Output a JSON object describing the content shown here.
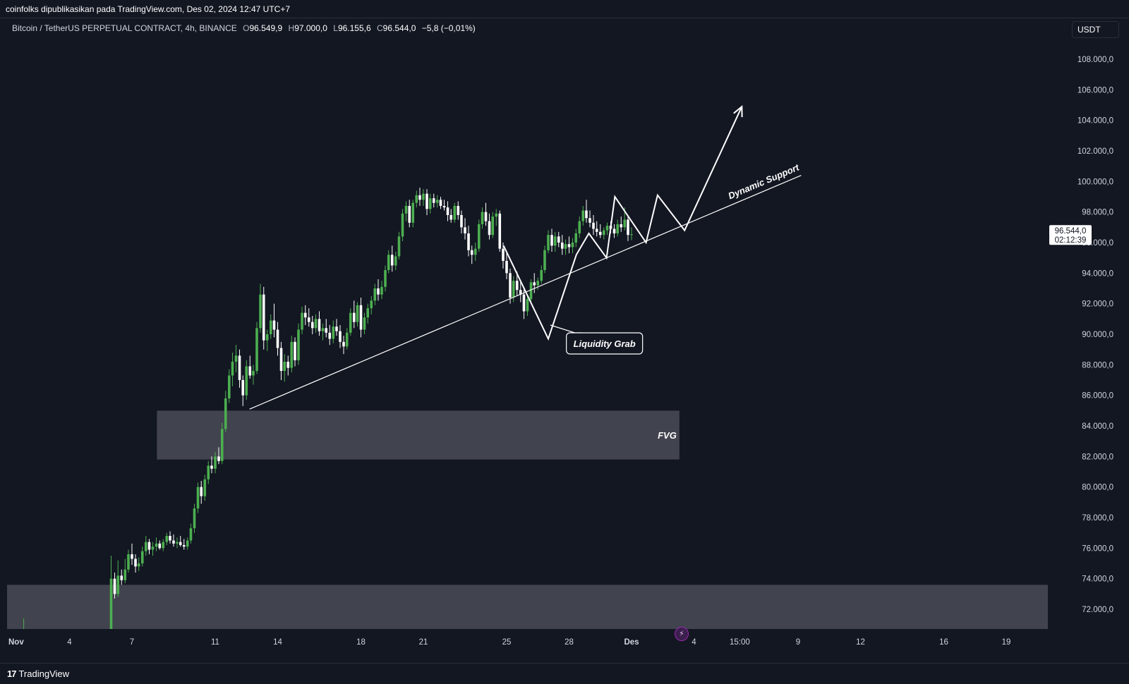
{
  "header": {
    "published_line": "coinfolks dipublikasikan pada TradingView.com, Des 02, 2024 12:47 UTC+7"
  },
  "legend": {
    "symbol": "Bitcoin / TetherUS PERPETUAL CONTRACT, 4h, BINANCE",
    "open_label": "O",
    "open": "96.549,9",
    "high_label": "H",
    "high": "97.000,0",
    "low_label": "L",
    "low": "96.155,6",
    "close_label": "C",
    "close": "96.544,0",
    "change": "−5,8 (−0,01%)"
  },
  "currency": "USDT",
  "footer": {
    "brand": "TradingView",
    "logo": "17"
  },
  "colors": {
    "background": "#131722",
    "up": "#4caf50",
    "down": "#ffffff",
    "zone": "#434651",
    "drawing": "#ffffff"
  },
  "chart_data": {
    "type": "candlestick",
    "timeframe": "4h",
    "ylim": [
      70000,
      110000
    ],
    "y_ticks": [
      72000,
      74000,
      76000,
      78000,
      80000,
      82000,
      84000,
      86000,
      88000,
      90000,
      92000,
      94000,
      96000,
      98000,
      100000,
      102000,
      104000,
      106000,
      108000
    ],
    "y_tick_labels": [
      "72.000,0",
      "74.000,0",
      "76.000,0",
      "78.000,0",
      "80.000,0",
      "82.000,0",
      "84.000,0",
      "86.000,0",
      "88.000,0",
      "90.000,0",
      "92.000,0",
      "94.000,0",
      "96.000,0",
      "98.000,0",
      "100.000,0",
      "102.000,0",
      "104.000,0",
      "106.000,0",
      "108.000,0"
    ],
    "x_range_days": [
      1,
      51
    ],
    "x_ticks": [
      {
        "day": 1,
        "label": "Nov",
        "bold": true
      },
      {
        "day": 4,
        "label": "4"
      },
      {
        "day": 7,
        "label": "7"
      },
      {
        "day": 11,
        "label": "11"
      },
      {
        "day": 14,
        "label": "14"
      },
      {
        "day": 18,
        "label": "18"
      },
      {
        "day": 21,
        "label": "21"
      },
      {
        "day": 25,
        "label": "25"
      },
      {
        "day": 28,
        "label": "28"
      },
      {
        "day": 31,
        "label": "Des",
        "bold": true
      },
      {
        "day": 34,
        "label": "4"
      },
      {
        "day": 36.2,
        "label": "15:00"
      },
      {
        "day": 39,
        "label": "9"
      },
      {
        "day": 42,
        "label": "12"
      },
      {
        "day": 46,
        "label": "16"
      },
      {
        "day": 49,
        "label": "19"
      }
    ],
    "current_price": {
      "value": 96544,
      "label": "96.544,0",
      "countdown": "02:12:39"
    },
    "zones": [
      {
        "label": "FVG",
        "from_day": 8.2,
        "to_day": 33.3,
        "low": 81800,
        "high": 85000
      },
      {
        "label": "",
        "from_day": 1,
        "to_day": 51,
        "low": 70000,
        "high": 73600
      }
    ],
    "trendline": {
      "label": "Dynamic Support",
      "start": {
        "day": 12.65,
        "price": 85100
      },
      "end": {
        "day": 39.15,
        "price": 100400
      }
    },
    "projection_path": [
      {
        "day": 24.85,
        "price": 95800
      },
      {
        "day": 27.0,
        "price": 89700
      },
      {
        "day": 28.35,
        "price": 95200
      },
      {
        "day": 28.95,
        "price": 96600
      },
      {
        "day": 29.8,
        "price": 95000
      },
      {
        "day": 30.2,
        "price": 99000
      },
      {
        "day": 31.7,
        "price": 96000
      },
      {
        "day": 32.25,
        "price": 99100
      },
      {
        "day": 33.55,
        "price": 96800
      },
      {
        "day": 36.3,
        "price": 104900
      }
    ],
    "annotations": [
      {
        "label": "Liquidity Grab",
        "box_day": 29.7,
        "box_price": 89400,
        "pointer_day": 27.1,
        "pointer_price": 90600
      }
    ],
    "candles": [
      [
        1,
        70000,
        70200,
        69800,
        70000
      ],
      [
        1.8,
        70000,
        71400,
        69900,
        70100
      ],
      [
        6.0,
        70100,
        75500,
        70000,
        74000
      ],
      [
        6.17,
        74000,
        74400,
        72700,
        73000
      ],
      [
        6.33,
        73000,
        75200,
        72800,
        74200
      ],
      [
        6.5,
        74200,
        74600,
        73600,
        73900
      ],
      [
        6.67,
        73900,
        75300,
        73700,
        74600
      ],
      [
        6.83,
        74600,
        75900,
        74400,
        75600
      ],
      [
        7.0,
        75600,
        76300,
        74900,
        75300
      ],
      [
        7.17,
        75300,
        75600,
        74400,
        74800
      ],
      [
        7.33,
        74800,
        75400,
        74500,
        75000
      ],
      [
        7.5,
        75000,
        76100,
        74800,
        75800
      ],
      [
        7.67,
        75800,
        76800,
        75500,
        76400
      ],
      [
        7.83,
        76400,
        76600,
        75600,
        75900
      ],
      [
        8.0,
        75900,
        76400,
        75500,
        76100
      ],
      [
        8.17,
        76100,
        76700,
        75800,
        76300
      ],
      [
        8.33,
        76300,
        76500,
        75900,
        76000
      ],
      [
        8.5,
        76000,
        76600,
        75800,
        76400
      ],
      [
        8.67,
        76400,
        77000,
        76200,
        76800
      ],
      [
        8.83,
        76800,
        77100,
        76300,
        76500
      ],
      [
        9.0,
        76500,
        76900,
        76100,
        76300
      ],
      [
        9.17,
        76300,
        76700,
        76000,
        76400
      ],
      [
        9.33,
        76400,
        76800,
        76100,
        76200
      ],
      [
        9.5,
        76200,
        76600,
        75900,
        76100
      ],
      [
        9.67,
        76100,
        76700,
        75900,
        76500
      ],
      [
        9.83,
        76500,
        77600,
        76300,
        77300
      ],
      [
        10.0,
        77300,
        78900,
        77000,
        78600
      ],
      [
        10.17,
        78600,
        80300,
        78300,
        80000
      ],
      [
        10.33,
        80000,
        80400,
        78900,
        79400
      ],
      [
        10.5,
        79400,
        80800,
        79100,
        80500
      ],
      [
        10.67,
        80500,
        81700,
        80200,
        81400
      ],
      [
        10.83,
        81400,
        82000,
        80900,
        81200
      ],
      [
        11.0,
        81200,
        82300,
        80900,
        82000
      ],
      [
        11.17,
        82000,
        82600,
        81500,
        81700
      ],
      [
        11.33,
        81700,
        84200,
        81500,
        83800
      ],
      [
        11.5,
        83800,
        86300,
        83600,
        85800
      ],
      [
        11.67,
        85800,
        87700,
        85500,
        87300
      ],
      [
        11.83,
        87300,
        88800,
        86600,
        88200
      ],
      [
        12.0,
        88200,
        89300,
        87500,
        88600
      ],
      [
        12.17,
        88600,
        89000,
        86500,
        87000
      ],
      [
        12.33,
        87000,
        87300,
        85300,
        86000
      ],
      [
        12.5,
        86000,
        88300,
        85700,
        87900
      ],
      [
        12.67,
        87900,
        88600,
        87100,
        87300
      ],
      [
        12.83,
        87300,
        88000,
        86700,
        87600
      ],
      [
        13.0,
        87600,
        90800,
        87400,
        90400
      ],
      [
        13.17,
        90400,
        93300,
        90100,
        92600
      ],
      [
        13.33,
        92600,
        93100,
        89000,
        89600
      ],
      [
        13.5,
        89600,
        90300,
        88900,
        90000
      ],
      [
        13.67,
        90000,
        91300,
        89700,
        90900
      ],
      [
        13.83,
        90900,
        92000,
        89800,
        90300
      ],
      [
        14.0,
        90300,
        90800,
        88600,
        89100
      ],
      [
        14.17,
        89100,
        89500,
        87000,
        87600
      ],
      [
        14.33,
        87600,
        88700,
        86900,
        88200
      ],
      [
        14.5,
        88200,
        88600,
        87300,
        87800
      ],
      [
        14.67,
        87800,
        89900,
        87500,
        89500
      ],
      [
        14.83,
        89500,
        89800,
        87900,
        88300
      ],
      [
        15.0,
        88300,
        90700,
        88000,
        90300
      ],
      [
        15.17,
        90300,
        91800,
        90000,
        91400
      ],
      [
        15.33,
        91400,
        91900,
        90600,
        91100
      ],
      [
        15.5,
        91100,
        91700,
        90500,
        90800
      ],
      [
        15.67,
        90800,
        91200,
        90000,
        90400
      ],
      [
        15.83,
        90400,
        91300,
        90100,
        91000
      ],
      [
        16.0,
        91000,
        91500,
        89900,
        90200
      ],
      [
        16.17,
        90200,
        90700,
        89600,
        90400
      ],
      [
        16.33,
        90400,
        91000,
        89800,
        90100
      ],
      [
        16.5,
        90100,
        90600,
        89300,
        89700
      ],
      [
        16.67,
        89700,
        90900,
        89400,
        90500
      ],
      [
        16.83,
        90500,
        91000,
        89900,
        90200
      ],
      [
        17.0,
        90200,
        90600,
        89100,
        89500
      ],
      [
        17.17,
        89500,
        89900,
        88700,
        89200
      ],
      [
        17.33,
        89200,
        90400,
        89000,
        90100
      ],
      [
        17.5,
        90100,
        91700,
        89900,
        91400
      ],
      [
        17.67,
        91400,
        92200,
        90400,
        90800
      ],
      [
        17.83,
        90800,
        92100,
        90500,
        91900
      ],
      [
        18.0,
        91900,
        92400,
        89800,
        90300
      ],
      [
        18.17,
        90300,
        91400,
        90000,
        91100
      ],
      [
        18.33,
        91100,
        92000,
        90700,
        91700
      ],
      [
        18.5,
        91700,
        92500,
        91300,
        92200
      ],
      [
        18.67,
        92200,
        93300,
        91900,
        93000
      ],
      [
        18.83,
        93000,
        93600,
        92200,
        92600
      ],
      [
        19.0,
        92600,
        93500,
        92300,
        93100
      ],
      [
        19.17,
        93100,
        94500,
        92800,
        94200
      ],
      [
        19.33,
        94200,
        95500,
        94000,
        95200
      ],
      [
        19.5,
        95200,
        95800,
        94100,
        94500
      ],
      [
        19.67,
        94500,
        95400,
        94200,
        95100
      ],
      [
        19.83,
        95100,
        96700,
        94900,
        96400
      ],
      [
        20.0,
        96400,
        98200,
        96100,
        97900
      ],
      [
        20.17,
        97900,
        98700,
        97400,
        98400
      ],
      [
        20.33,
        98400,
        98800,
        97000,
        97300
      ],
      [
        20.5,
        97300,
        98800,
        97000,
        98600
      ],
      [
        20.67,
        98600,
        99400,
        98300,
        99100
      ],
      [
        20.83,
        99100,
        99600,
        98400,
        98800
      ],
      [
        21.0,
        98800,
        99500,
        98400,
        99200
      ],
      [
        21.17,
        99200,
        99500,
        97800,
        98200
      ],
      [
        21.33,
        98200,
        99200,
        97900,
        98900
      ],
      [
        21.5,
        98900,
        99200,
        98300,
        98600
      ],
      [
        21.67,
        98600,
        99100,
        98300,
        98800
      ],
      [
        21.83,
        98800,
        99000,
        98200,
        98400
      ],
      [
        22.0,
        98400,
        98800,
        98100,
        98300
      ],
      [
        22.17,
        98300,
        98700,
        97400,
        97800
      ],
      [
        22.33,
        97800,
        98200,
        97300,
        97500
      ],
      [
        22.5,
        97500,
        98600,
        97300,
        98400
      ],
      [
        22.67,
        98400,
        98700,
        97500,
        97800
      ],
      [
        22.83,
        97800,
        98100,
        96600,
        97000
      ],
      [
        23.0,
        97000,
        97600,
        96200,
        96600
      ],
      [
        23.17,
        96600,
        97100,
        95100,
        95500
      ],
      [
        23.33,
        95500,
        95800,
        94600,
        95200
      ],
      [
        23.5,
        95200,
        96000,
        94800,
        95600
      ],
      [
        23.67,
        95600,
        97500,
        95400,
        97200
      ],
      [
        23.83,
        97200,
        98300,
        96900,
        98000
      ],
      [
        24.0,
        98000,
        98600,
        97100,
        97400
      ],
      [
        24.17,
        97400,
        97900,
        96200,
        96500
      ],
      [
        24.33,
        96500,
        98000,
        96300,
        97700
      ],
      [
        24.5,
        97700,
        98200,
        97100,
        97900
      ],
      [
        24.67,
        97900,
        98100,
        95400,
        95600
      ],
      [
        24.83,
        95600,
        96000,
        94300,
        94800
      ],
      [
        25.0,
        94800,
        95300,
        93600,
        94000
      ],
      [
        25.17,
        94000,
        94300,
        92000,
        92400
      ],
      [
        25.33,
        92400,
        93800,
        92100,
        93500
      ],
      [
        25.5,
        93500,
        94100,
        92500,
        92900
      ],
      [
        25.67,
        92900,
        93400,
        92100,
        92600
      ],
      [
        25.83,
        92600,
        93000,
        91000,
        91500
      ],
      [
        26.0,
        91500,
        92600,
        91200,
        92300
      ],
      [
        26.17,
        92300,
        93600,
        92100,
        93400
      ],
      [
        26.33,
        93400,
        94000,
        92700,
        93200
      ],
      [
        26.5,
        93200,
        93700,
        92900,
        93500
      ],
      [
        26.67,
        93500,
        94500,
        93300,
        94200
      ],
      [
        26.83,
        94200,
        95800,
        94000,
        95500
      ],
      [
        27.0,
        95500,
        96800,
        95300,
        96500
      ],
      [
        27.17,
        96500,
        96900,
        95400,
        95800
      ],
      [
        27.33,
        95800,
        96700,
        95400,
        96400
      ],
      [
        27.5,
        96400,
        96700,
        95700,
        96000
      ],
      [
        27.67,
        96000,
        96500,
        95200,
        95600
      ],
      [
        27.83,
        95600,
        96200,
        95200,
        95900
      ],
      [
        28.0,
        95900,
        96400,
        95300,
        95700
      ],
      [
        28.17,
        95700,
        96300,
        95300,
        96000
      ],
      [
        28.33,
        96000,
        96900,
        95700,
        96600
      ],
      [
        28.5,
        96600,
        97700,
        96300,
        97400
      ],
      [
        28.67,
        97400,
        98400,
        97100,
        98100
      ],
      [
        28.83,
        98100,
        98800,
        97300,
        97600
      ],
      [
        29.0,
        97600,
        98100,
        97000,
        97300
      ],
      [
        29.17,
        97300,
        97800,
        96500,
        96900
      ],
      [
        29.33,
        96900,
        97400,
        96400,
        96700
      ],
      [
        29.5,
        96700,
        97200,
        96300,
        96500
      ],
      [
        29.67,
        96500,
        97000,
        96200,
        96800
      ],
      [
        29.83,
        96800,
        97300,
        96500,
        97100
      ],
      [
        30.0,
        97100,
        97400,
        96600,
        96900
      ],
      [
        30.17,
        96900,
        97200,
        96300,
        96600
      ],
      [
        30.33,
        96600,
        97500,
        96400,
        97200
      ],
      [
        30.5,
        97200,
        97700,
        96700,
        97000
      ],
      [
        30.67,
        97000,
        98300,
        96800,
        97500
      ],
      [
        30.83,
        97500,
        97800,
        96100,
        96500
      ],
      [
        31.0,
        96500,
        97000,
        96155,
        96544
      ]
    ]
  }
}
